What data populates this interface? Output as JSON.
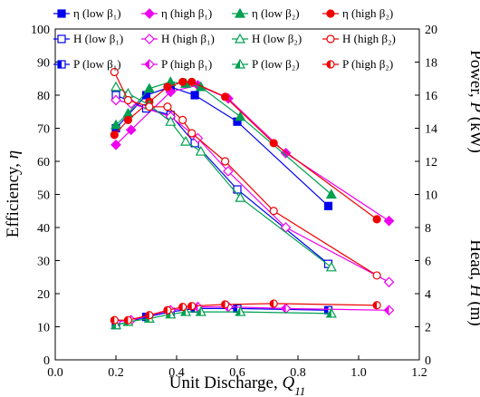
{
  "chart_data": {
    "type": "line",
    "xlabel": "Unit Discharge, ",
    "xlabel_var": "Q",
    "xlabel_sub": "11",
    "ylabel_left": "Efficiency, ",
    "ylabel_left_var": "η",
    "ylabel_right_power": "Power, ",
    "ylabel_right_power_var": "P",
    "ylabel_right_power_unit": " (kW)",
    "ylabel_right_head": "Head, ",
    "ylabel_right_head_var": "H",
    "ylabel_right_head_unit": " (m)",
    "xlim": [
      0.0,
      1.2
    ],
    "xticks": [
      0.0,
      0.2,
      0.4,
      0.6,
      0.8,
      1.0,
      1.2
    ],
    "xtick_labels": [
      "0.0",
      "0.2",
      "0.4",
      "0.6",
      "0.8",
      "1.0",
      "1.2"
    ],
    "ylim_left": [
      0,
      100
    ],
    "yticks_left": [
      0,
      10,
      20,
      30,
      40,
      50,
      60,
      70,
      80,
      90,
      100
    ],
    "ytick_labels_left": [
      "0",
      "10",
      "20",
      "30",
      "40",
      "50",
      "60",
      "70",
      "80",
      "90",
      "100"
    ],
    "ylim_right": [
      0,
      20
    ],
    "yticks_right": [
      0,
      2,
      4,
      6,
      8,
      10,
      12,
      14,
      16,
      18,
      20
    ],
    "ytick_labels_right": [
      "0",
      "2",
      "4",
      "6",
      "8",
      "10",
      "12",
      "14",
      "16",
      "18",
      "20"
    ],
    "legend_position": "top",
    "grid": false,
    "series": [
      {
        "name": "η (low β₁)",
        "color": "#0000ee",
        "marker": "square-filled",
        "axis": "left",
        "x": [
          0.2,
          0.3,
          0.38,
          0.46,
          0.6,
          0.9
        ],
        "y": [
          70,
          80,
          82.5,
          80,
          72,
          46.5
        ]
      },
      {
        "name": "η (high β₁)",
        "color": "#ee00ee",
        "marker": "diamond-filled",
        "axis": "left",
        "x": [
          0.2,
          0.25,
          0.38,
          0.47,
          0.57,
          0.76,
          1.1
        ],
        "y": [
          65,
          69.5,
          81,
          83,
          79,
          62.5,
          42
        ]
      },
      {
        "name": "η (low β₂)",
        "color": "#00a050",
        "marker": "triangle-filled",
        "axis": "left",
        "x": [
          0.2,
          0.24,
          0.31,
          0.38,
          0.43,
          0.48,
          0.61,
          0.91
        ],
        "y": [
          71,
          74.5,
          82,
          84,
          83.5,
          82.5,
          73.5,
          50
        ]
      },
      {
        "name": "η (high β₂)",
        "color": "#ee0000",
        "marker": "circle-filled",
        "axis": "left",
        "x": [
          0.195,
          0.24,
          0.31,
          0.37,
          0.42,
          0.45,
          0.56,
          0.72,
          1.06
        ],
        "y": [
          68,
          72.5,
          78,
          82.5,
          84,
          84,
          79.5,
          65.5,
          42.5
        ]
      },
      {
        "name": "H (low β₁)",
        "color": "#0000ee",
        "marker": "square-open",
        "axis": "left",
        "x": [
          0.2,
          0.3,
          0.38,
          0.46,
          0.6,
          0.9
        ],
        "y": [
          80,
          76,
          74,
          65.5,
          51.5,
          29
        ]
      },
      {
        "name": "H (high β₁)",
        "color": "#ee00ee",
        "marker": "diamond-open",
        "axis": "left",
        "x": [
          0.2,
          0.25,
          0.38,
          0.47,
          0.57,
          0.76,
          1.1
        ],
        "y": [
          78.5,
          77.5,
          73.5,
          67,
          57,
          40,
          23.5
        ]
      },
      {
        "name": "H (low β₂)",
        "color": "#00a050",
        "marker": "triangle-open",
        "axis": "left",
        "x": [
          0.2,
          0.24,
          0.31,
          0.38,
          0.43,
          0.48,
          0.61,
          0.91
        ],
        "y": [
          82.5,
          80.5,
          77,
          72,
          66,
          63,
          49,
          28
        ]
      },
      {
        "name": "H (high β₂)",
        "color": "#ee0000",
        "marker": "circle-open",
        "axis": "left",
        "x": [
          0.195,
          0.24,
          0.31,
          0.37,
          0.42,
          0.45,
          0.56,
          0.72,
          1.06
        ],
        "y": [
          87,
          78.5,
          76.5,
          76.5,
          72.5,
          68.5,
          60,
          45,
          25.5
        ]
      },
      {
        "name": "P (low β₁)",
        "color": "#0000ee",
        "marker": "square-half",
        "axis": "right",
        "x": [
          0.2,
          0.3,
          0.38,
          0.46,
          0.6,
          0.9
        ],
        "y": [
          2.1,
          2.6,
          2.9,
          3.1,
          3.1,
          3.0
        ]
      },
      {
        "name": "P (high β₁)",
        "color": "#ee00ee",
        "marker": "diamond-half",
        "axis": "right",
        "x": [
          0.2,
          0.25,
          0.38,
          0.47,
          0.57,
          0.76,
          1.1
        ],
        "y": [
          2.3,
          2.4,
          3.0,
          3.2,
          3.2,
          3.1,
          3.0
        ]
      },
      {
        "name": "P (low β₂)",
        "color": "#00a050",
        "marker": "triangle-half",
        "axis": "right",
        "x": [
          0.2,
          0.24,
          0.31,
          0.38,
          0.43,
          0.48,
          0.61,
          0.91
        ],
        "y": [
          2.1,
          2.3,
          2.5,
          2.75,
          2.9,
          2.9,
          2.9,
          2.8
        ]
      },
      {
        "name": "P (high β₂)",
        "color": "#ee0000",
        "marker": "circle-half",
        "axis": "right",
        "x": [
          0.195,
          0.24,
          0.31,
          0.37,
          0.42,
          0.45,
          0.56,
          0.72,
          1.06
        ],
        "y": [
          2.4,
          2.4,
          2.7,
          3.0,
          3.2,
          3.25,
          3.35,
          3.4,
          3.3
        ]
      }
    ]
  }
}
